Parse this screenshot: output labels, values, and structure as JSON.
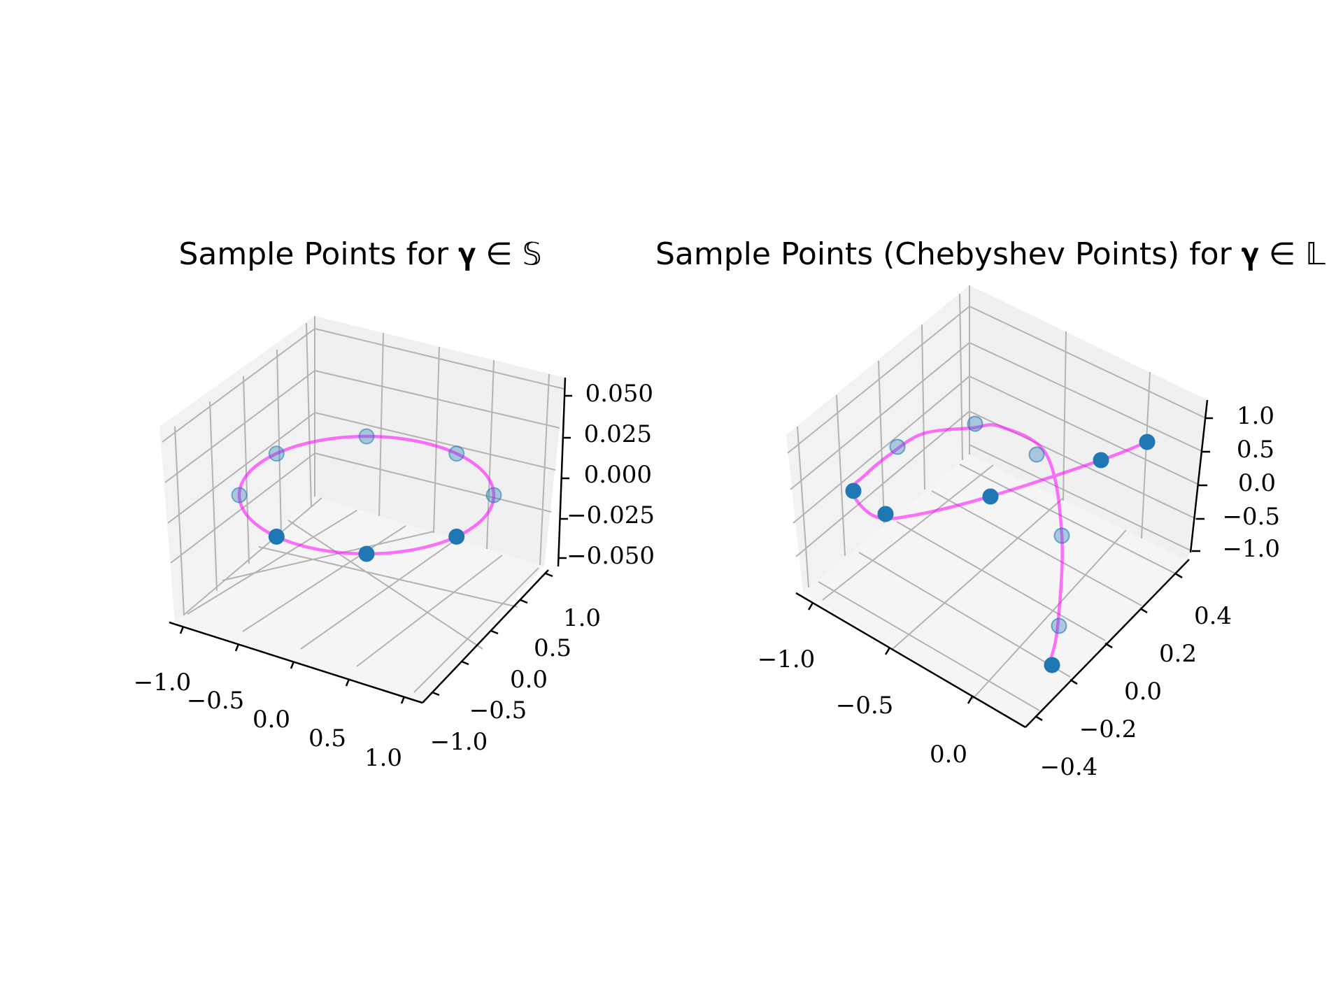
{
  "chart_data": [
    {
      "type": "scatter3d",
      "title": "Sample Points for 𝛄 ∈ 𝕊",
      "x_ticks": [
        "−1.0",
        "−0.5",
        "0.0",
        "0.5",
        "1.0"
      ],
      "y_ticks": [
        "−1.0",
        "−0.5",
        "0.0",
        "0.5",
        "1.0"
      ],
      "z_ticks": [
        "−0.050",
        "−0.025",
        "0.000",
        "0.025",
        "0.050"
      ],
      "xlim": [
        -1.1,
        1.1
      ],
      "ylim": [
        -1.1,
        1.1
      ],
      "zlim": [
        -0.06,
        0.06
      ],
      "curve_color": "#ff00ff",
      "point_color": "#1f77b4",
      "grid": true,
      "points": [
        {
          "x": 1.0,
          "y": 0.0,
          "z": 0
        },
        {
          "x": 0.707,
          "y": 0.707,
          "z": 0
        },
        {
          "x": 0.0,
          "y": 1.0,
          "z": 0
        },
        {
          "x": -0.707,
          "y": 0.707,
          "z": 0
        },
        {
          "x": -1.0,
          "y": 0.0,
          "z": 0
        },
        {
          "x": -0.707,
          "y": -0.707,
          "z": 0
        },
        {
          "x": 0.0,
          "y": -1.0,
          "z": 0
        },
        {
          "x": 0.707,
          "y": -0.707,
          "z": 0
        }
      ]
    },
    {
      "type": "scatter3d",
      "title": "Sample Points (Chebyshev Points) for 𝛄 ∈ 𝕃",
      "x_ticks": [
        "−1.0",
        "−0.5",
        "0.0"
      ],
      "y_ticks": [
        "−0.4",
        "−0.2",
        "0.0",
        "0.2",
        "0.4"
      ],
      "z_ticks": [
        "−1.0",
        "−0.5",
        "0.0",
        "0.5",
        "1.0"
      ],
      "xlim": [
        -1.1,
        0.2
      ],
      "ylim": [
        -0.45,
        0.5
      ],
      "zlim": [
        -1.1,
        1.2
      ],
      "curve_color": "#ff00ff",
      "point_color": "#1f77b4",
      "grid": true,
      "points": [
        {
          "x": -0.02,
          "y": -0.38,
          "z": -1.0
        },
        {
          "x": -0.08,
          "y": -0.29,
          "z": -0.75
        },
        {
          "x": -0.18,
          "y": -0.08,
          "z": -0.25
        },
        {
          "x": -0.45,
          "y": 0.18,
          "z": 0.6
        },
        {
          "x": -0.8,
          "y": 0.32,
          "z": 0.55
        },
        {
          "x": -1.0,
          "y": 0.15,
          "z": 0.05
        },
        {
          "x": -0.9,
          "y": -0.05,
          "z": -0.3
        },
        {
          "x": -0.55,
          "y": 0.02,
          "z": 0.0
        },
        {
          "x": -0.3,
          "y": 0.2,
          "z": 0.5
        },
        {
          "x": -0.1,
          "y": 0.4,
          "z": 0.95
        }
      ]
    }
  ]
}
